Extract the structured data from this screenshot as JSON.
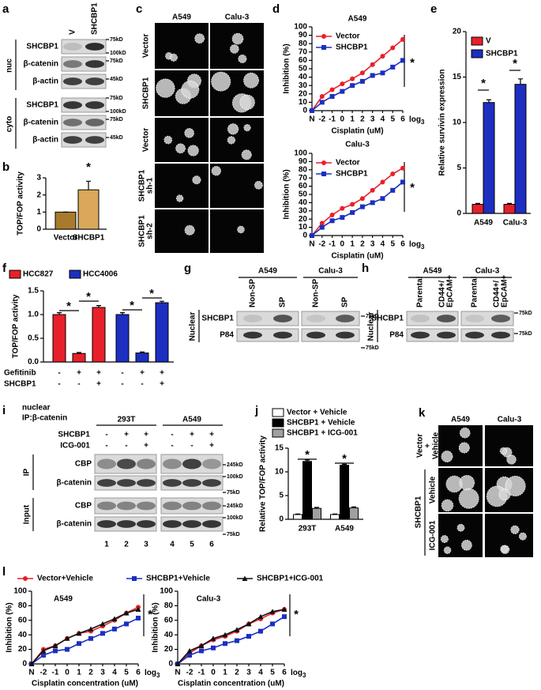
{
  "figure": {
    "panel_labels": [
      "a",
      "b",
      "c",
      "d",
      "e",
      "f",
      "g",
      "h",
      "i",
      "j",
      "k",
      "l"
    ]
  },
  "panel_a": {
    "columns": [
      "V",
      "SHCBP1"
    ],
    "groups": [
      {
        "name": "nuc",
        "rows": [
          "SHCBP1",
          "β-catenin",
          "β-actin"
        ],
        "markers": [
          "75kD",
          "100kD",
          "75kD",
          "45kD"
        ]
      },
      {
        "name": "cyto",
        "rows": [
          "SHCBP1",
          "β-catenin",
          "β-actin"
        ],
        "markers": [
          "75kD",
          "100kD",
          "75kD",
          "45kD"
        ]
      }
    ]
  },
  "panel_c": {
    "columns": [
      "A549",
      "Calu-3"
    ],
    "rows": [
      [
        "Vector"
      ],
      [
        "SHCBP1"
      ],
      [
        "Vector"
      ],
      [
        "SHCBP1",
        "sh-1"
      ],
      [
        "SHCBP1",
        "sh-2"
      ]
    ]
  },
  "panel_g": {
    "groups": [
      "A549",
      "Calu-3"
    ],
    "lanes": [
      [
        "Non-SP"
      ],
      [
        "SP"
      ],
      [
        "Non-SP"
      ],
      [
        "SP"
      ]
    ],
    "fraction": "Nuclear",
    "rows": [
      "SHCBP1",
      "P84"
    ],
    "markers": [
      "75kD",
      "75kD"
    ]
  },
  "panel_h": {
    "groups": [
      "A549",
      "Calu-3"
    ],
    "lanes": [
      [
        "Parental"
      ],
      [
        "CD44+/",
        "EpCAM+"
      ],
      [
        "Parental"
      ],
      [
        "CD44+/",
        "EpCAM+"
      ]
    ],
    "fraction": "Nuclear",
    "rows": [
      "SHCBP1",
      "P84"
    ],
    "markers": [
      "75kD",
      "75kD"
    ]
  },
  "panel_i": {
    "header": [
      "nuclear",
      "IP:β-catenin"
    ],
    "groups": [
      "293T",
      "A549"
    ],
    "conditions": [
      {
        "name": "SHCBP1",
        "signs": [
          "-",
          "+",
          "+",
          "-",
          "+",
          "+"
        ]
      },
      {
        "name": "ICG-001",
        "signs": [
          "-",
          "-",
          "+",
          "-",
          "-",
          "+"
        ]
      }
    ],
    "sections": [
      {
        "name": "IP",
        "rows": [
          "CBP",
          "β-catenin"
        ]
      },
      {
        "name": "Input",
        "rows": [
          "CBP",
          "β-catenin"
        ]
      }
    ],
    "markers": [
      "245kD",
      "100kD",
      "75kD",
      "245kD",
      "100kD",
      "75kD"
    ],
    "lanes": [
      "1",
      "2",
      "3",
      "4",
      "5",
      "6"
    ]
  },
  "panel_k": {
    "columns": [
      "A549",
      "Calu-3"
    ],
    "rows": [
      [
        "Vector",
        "+",
        "Vehicle"
      ],
      [
        "Vehicle"
      ],
      [
        "ICG-001"
      ]
    ],
    "group": "SHCBP1"
  },
  "chart_data": [
    {
      "type": "bar",
      "categories": [
        "Vector",
        "SHCBP1"
      ],
      "values": [
        1.0,
        2.3
      ],
      "errors": [
        0,
        0.5
      ],
      "colors": [
        "#a87a2c",
        "#d9a85a"
      ],
      "y_label": "TOP/FOP  activity",
      "ylim": [
        0,
        3
      ],
      "yticks": [
        0,
        1,
        2,
        3
      ],
      "annotations": [
        "*"
      ]
    },
    {
      "type": "line",
      "title": "A549",
      "categories": [
        "N",
        "-2",
        "-1",
        "0",
        "1",
        "2",
        "3",
        "4",
        "5",
        "6"
      ],
      "x_unit": {
        "base": "log",
        "sub": "3"
      },
      "x_label": "Cisplatin (uM)",
      "y_label": "Inhibition (%)",
      "ylim": [
        0,
        100
      ],
      "yticks": [
        0,
        10,
        20,
        30,
        40,
        50,
        60,
        70,
        80,
        90,
        100
      ],
      "series": [
        {
          "name": "Vector",
          "color": "#e8202a",
          "values": [
            0,
            17,
            25,
            32,
            38,
            45,
            55,
            65,
            75,
            85
          ]
        },
        {
          "name": "SHCBP1",
          "color": "#1c2fc0",
          "values": [
            0,
            10,
            17,
            23,
            30,
            35,
            42,
            45,
            52,
            60
          ]
        }
      ],
      "annotations": [
        "*"
      ]
    },
    {
      "type": "line",
      "title": "Calu-3",
      "categories": [
        "N",
        "-2",
        "-1",
        "0",
        "1",
        "2",
        "3",
        "4",
        "5",
        "6"
      ],
      "x_unit": {
        "base": "log",
        "sub": "3"
      },
      "x_label": "Cisplatin  (uM)",
      "y_label": "Inhibition (%)",
      "ylim": [
        0,
        100
      ],
      "yticks": [
        0,
        10,
        20,
        30,
        40,
        50,
        60,
        70,
        80,
        90,
        100
      ],
      "series": [
        {
          "name": "Vector",
          "color": "#e8202a",
          "values": [
            0,
            15,
            25,
            33,
            38,
            45,
            55,
            65,
            75,
            82
          ]
        },
        {
          "name": "SHCBP1",
          "color": "#1c2fc0",
          "values": [
            0,
            10,
            18,
            22,
            28,
            35,
            40,
            45,
            55,
            65
          ]
        }
      ],
      "annotations": [
        "*"
      ]
    },
    {
      "type": "bar",
      "categories": [
        "A549",
        "Calu-3"
      ],
      "y_label": "Relative survivin expression",
      "ylim": [
        0,
        20
      ],
      "yticks": [
        0,
        5,
        10,
        15,
        20
      ],
      "series": [
        {
          "name": "V",
          "color": "#e8202a",
          "values": [
            1,
            1
          ],
          "errors": [
            0.1,
            0.1
          ]
        },
        {
          "name": "SHCBP1",
          "color": "#1c2fc0",
          "values": [
            12.2,
            14.2
          ],
          "errors": [
            0.3,
            0.6
          ]
        }
      ],
      "annotations": [
        "*",
        "*"
      ]
    },
    {
      "type": "bar",
      "y_label": "TOP/FOP activity",
      "ylim": [
        0,
        1.5
      ],
      "yticks": [
        {
          "value": 0,
          "label": "0.0"
        },
        0.5,
        {
          "value": 1,
          "label": "1.0"
        },
        1.5
      ],
      "series": [
        {
          "name": "HCC827",
          "color": "#e8202a",
          "values": [
            1.0,
            0.18,
            1.15
          ],
          "errors": [
            0.04,
            0.02,
            0.04
          ]
        },
        {
          "name": "HCC4006",
          "color": "#1c2fc0",
          "values": [
            1.0,
            0.19,
            1.25
          ],
          "errors": [
            0.04,
            0.02,
            0.03
          ]
        }
      ],
      "conditions": [
        {
          "name": "Gefitinib",
          "signs": [
            "-",
            "+",
            "+",
            "-",
            "+",
            "+"
          ]
        },
        {
          "name": "SHCBP1",
          "signs": [
            "-",
            "-",
            "+",
            "-",
            "-",
            "+"
          ]
        }
      ],
      "annotations": [
        "*",
        "*",
        "*",
        "*"
      ]
    },
    {
      "type": "bar",
      "categories": [
        "293T",
        "A549"
      ],
      "y_label": "Relative TOP/FOP  activity",
      "ylim": [
        0,
        15
      ],
      "yticks": [
        0,
        5,
        10,
        15
      ],
      "series": [
        {
          "name": "Vector + Vehicle",
          "color": "#ffffff",
          "values": [
            1,
            1
          ],
          "errors": [
            0.1,
            0.1
          ]
        },
        {
          "name": "SHCBP1 + Vehicle",
          "color": "#000000",
          "values": [
            12.2,
            11.4
          ],
          "errors": [
            0.3,
            0.2
          ]
        },
        {
          "name": "SHCBP1 + ICG-001",
          "color": "#a0a0a0",
          "values": [
            2.3,
            2.4
          ],
          "errors": [
            0.2,
            0.2
          ]
        }
      ],
      "annotations": [
        "*",
        "*"
      ]
    },
    {
      "type": "line",
      "title": "A549",
      "categories": [
        "N",
        "-2",
        "-1",
        "0",
        "1",
        "2",
        "3",
        "4",
        "5",
        "6"
      ],
      "x_unit": {
        "base": "log",
        "sub": "3"
      },
      "x_label": "Cisplatin concentration (uM)",
      "y_label": "Inhibition (%)",
      "ylim": [
        0,
        100
      ],
      "yticks": [
        0,
        20,
        40,
        60,
        80,
        100
      ],
      "series": [
        {
          "name": "Vector+Vehicle",
          "color": "#e8202a",
          "values": [
            0,
            20,
            25,
            35,
            42,
            45,
            52,
            60,
            70,
            78
          ]
        },
        {
          "name": "SHCBP1+Vehicle",
          "color": "#1c2fc0",
          "values": [
            0,
            12,
            18,
            20,
            28,
            35,
            42,
            48,
            55,
            63
          ]
        },
        {
          "name": "SHCBP1+ICG-001",
          "color": "#111111",
          "values": [
            0,
            18,
            25,
            35,
            42,
            48,
            55,
            62,
            70,
            75
          ]
        }
      ],
      "annotations": [
        "*"
      ]
    },
    {
      "type": "line",
      "title": "Calu-3",
      "categories": [
        "N",
        "-2",
        "-1",
        "0",
        "1",
        "2",
        "3",
        "4",
        "5",
        "6"
      ],
      "x_unit": {
        "base": "log",
        "sub": "3"
      },
      "x_label": "Cisplatin concentration (uM)",
      "y_label": "Inhibition (%)",
      "ylim": [
        0,
        100
      ],
      "yticks": [
        0,
        20,
        40,
        60,
        80,
        100
      ],
      "series": [
        {
          "color": "#e8202a",
          "values": [
            0,
            15,
            25,
            33,
            38,
            45,
            55,
            62,
            70,
            75
          ]
        },
        {
          "color": "#1c2fc0",
          "values": [
            0,
            12,
            18,
            22,
            28,
            32,
            38,
            45,
            55,
            65
          ]
        },
        {
          "color": "#111111",
          "values": [
            0,
            18,
            25,
            35,
            40,
            47,
            55,
            65,
            72,
            75
          ]
        }
      ],
      "annotations": [
        "*"
      ]
    }
  ]
}
